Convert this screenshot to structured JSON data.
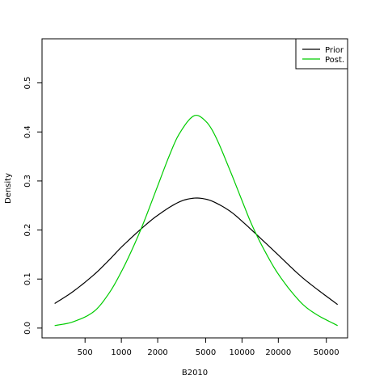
{
  "chart_data": {
    "type": "line",
    "title": "",
    "xlabel": "B2010",
    "ylabel": "Density",
    "x_scale": "log",
    "xlim": [
      220,
      75000
    ],
    "ylim": [
      -0.02,
      0.59
    ],
    "xticks": [
      500,
      1000,
      2000,
      5000,
      10000,
      20000,
      50000
    ],
    "xtick_labels": [
      "500",
      "1000",
      "2000",
      "5000",
      "10000",
      "20000",
      "50000"
    ],
    "yticks": [
      0.0,
      0.1,
      0.2,
      0.3,
      0.4,
      0.5
    ],
    "ytick_labels": [
      "0.0",
      "0.1",
      "0.2",
      "0.3",
      "0.4",
      "0.5"
    ],
    "grid": false,
    "legend": {
      "position": "top-right",
      "entries": [
        {
          "label": "Prior",
          "color": "#000000"
        },
        {
          "label": "Post.",
          "color": "#00cc00"
        }
      ]
    },
    "series": [
      {
        "name": "Prior",
        "color": "#000000",
        "x": [
          280,
          400,
          600,
          800,
          1000,
          1500,
          2000,
          3000,
          4000,
          5000,
          6000,
          8000,
          10000,
          15000,
          20000,
          30000,
          40000,
          62000
        ],
        "y": [
          0.05,
          0.075,
          0.11,
          0.14,
          0.165,
          0.205,
          0.23,
          0.257,
          0.265,
          0.263,
          0.256,
          0.238,
          0.218,
          0.178,
          0.149,
          0.108,
          0.083,
          0.048
        ]
      },
      {
        "name": "Post.",
        "color": "#00cc00",
        "x": [
          280,
          400,
          600,
          800,
          1000,
          1200,
          1500,
          2000,
          2500,
          3000,
          4000,
          5000,
          6000,
          8000,
          10000,
          12000,
          15000,
          20000,
          30000,
          40000,
          62000
        ],
        "y": [
          0.005,
          0.013,
          0.035,
          0.073,
          0.115,
          0.155,
          0.21,
          0.29,
          0.352,
          0.395,
          0.433,
          0.422,
          0.392,
          0.32,
          0.26,
          0.212,
          0.163,
          0.11,
          0.055,
          0.03,
          0.005
        ]
      }
    ]
  }
}
